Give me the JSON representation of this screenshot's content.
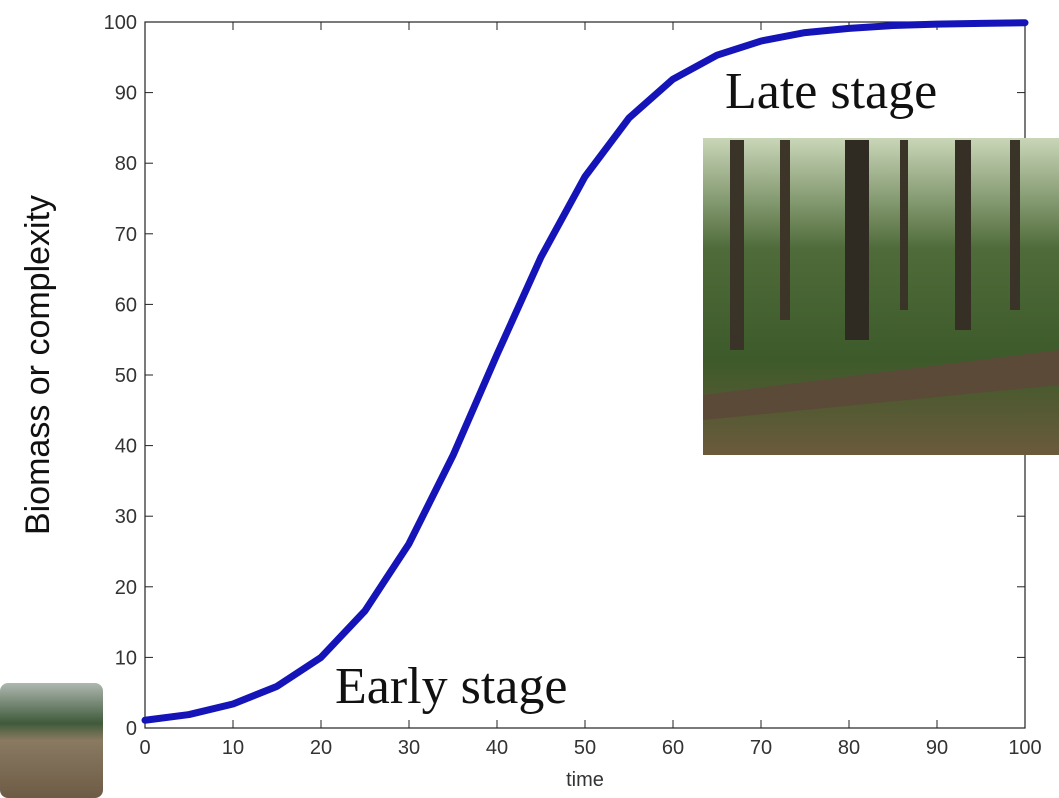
{
  "chart_data": {
    "type": "line",
    "x_label": "time",
    "y_label": "Biomass or complexity",
    "annotations": [
      "Late stage",
      "Early stage"
    ],
    "x": [
      0,
      5,
      10,
      15,
      20,
      25,
      30,
      35,
      40,
      45,
      50,
      55,
      60,
      65,
      70,
      75,
      80,
      85,
      90,
      95,
      100
    ],
    "series": [
      {
        "color": "#1414b8",
        "values": [
          1.1,
          1.9,
          3.4,
          5.9,
          10.0,
          16.6,
          26.1,
          38.6,
          52.9,
          66.7,
          78.1,
          86.4,
          91.9,
          95.3,
          97.3,
          98.5,
          99.1,
          99.5,
          99.7,
          99.8,
          99.9
        ]
      }
    ],
    "xlim": [
      0,
      100
    ],
    "ylim": [
      0,
      100
    ],
    "xticks": [
      0,
      10,
      20,
      30,
      40,
      50,
      60,
      70,
      80,
      90,
      100
    ],
    "yticks": [
      0,
      10,
      20,
      30,
      40,
      50,
      60,
      70,
      80,
      90,
      100
    ]
  }
}
